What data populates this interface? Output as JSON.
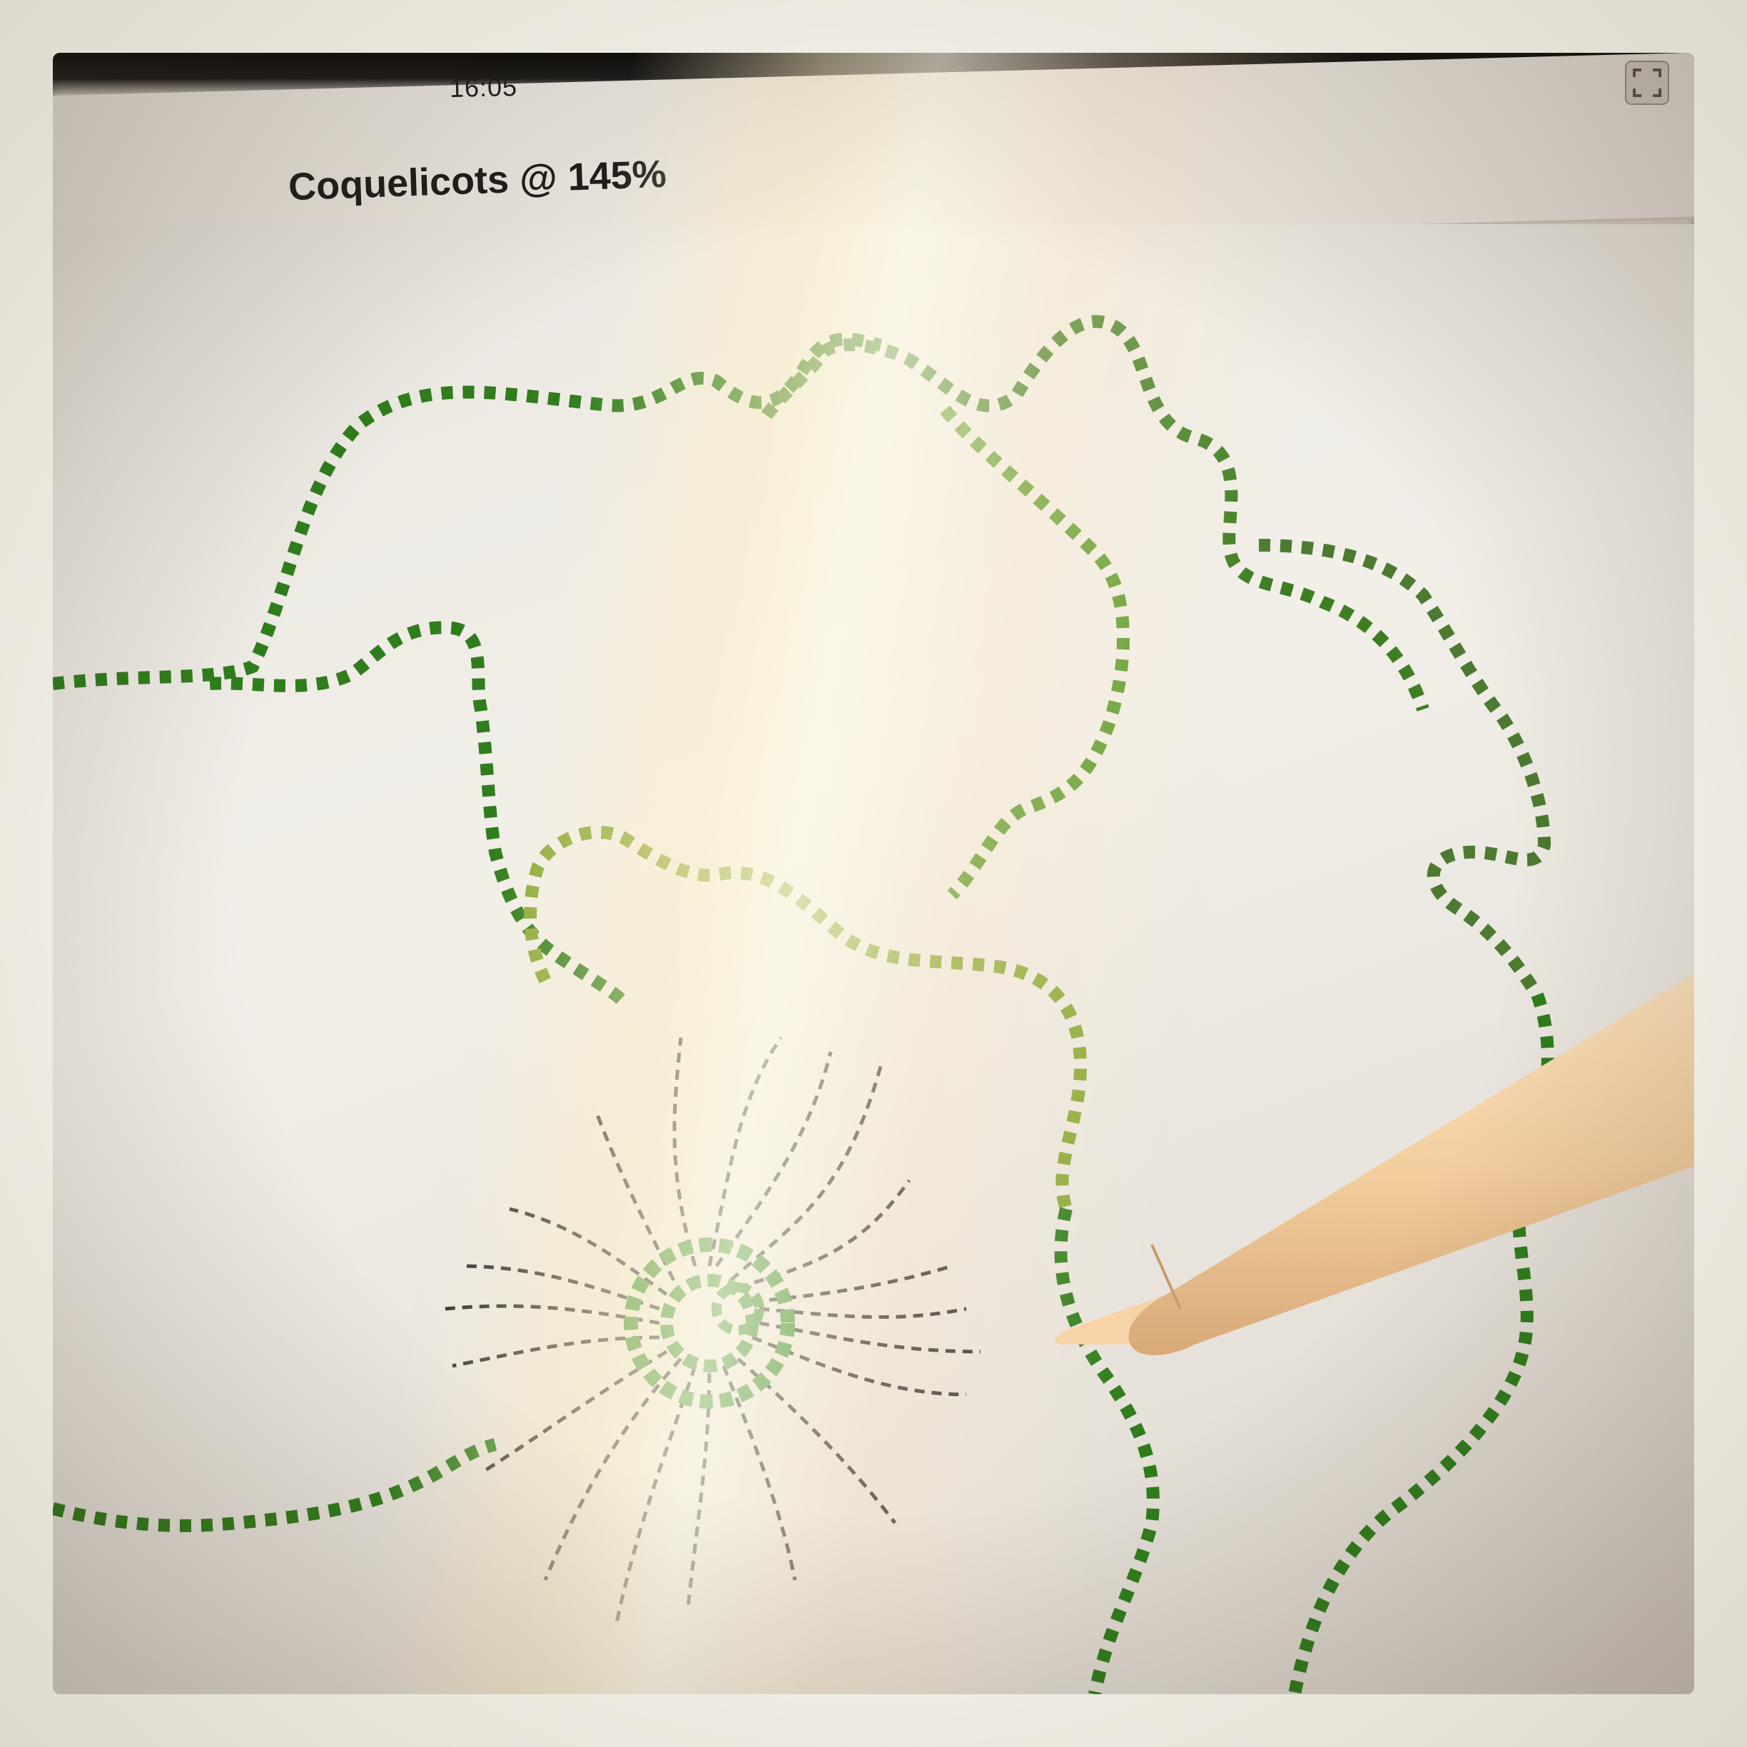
{
  "status_bar": {
    "time": "16:05"
  },
  "document": {
    "title": "Coquelicots @ 145%"
  },
  "icons": {
    "fullscreen": "fullscreen-icon",
    "pencil": "stylus-pencil"
  },
  "colors": {
    "petal_outline": "#2f7d1c",
    "petal_outline_light": "#c9c84a",
    "stamen": "#2a2a2a",
    "center": "#2e8a26",
    "pencil": "#f3cfa0"
  }
}
